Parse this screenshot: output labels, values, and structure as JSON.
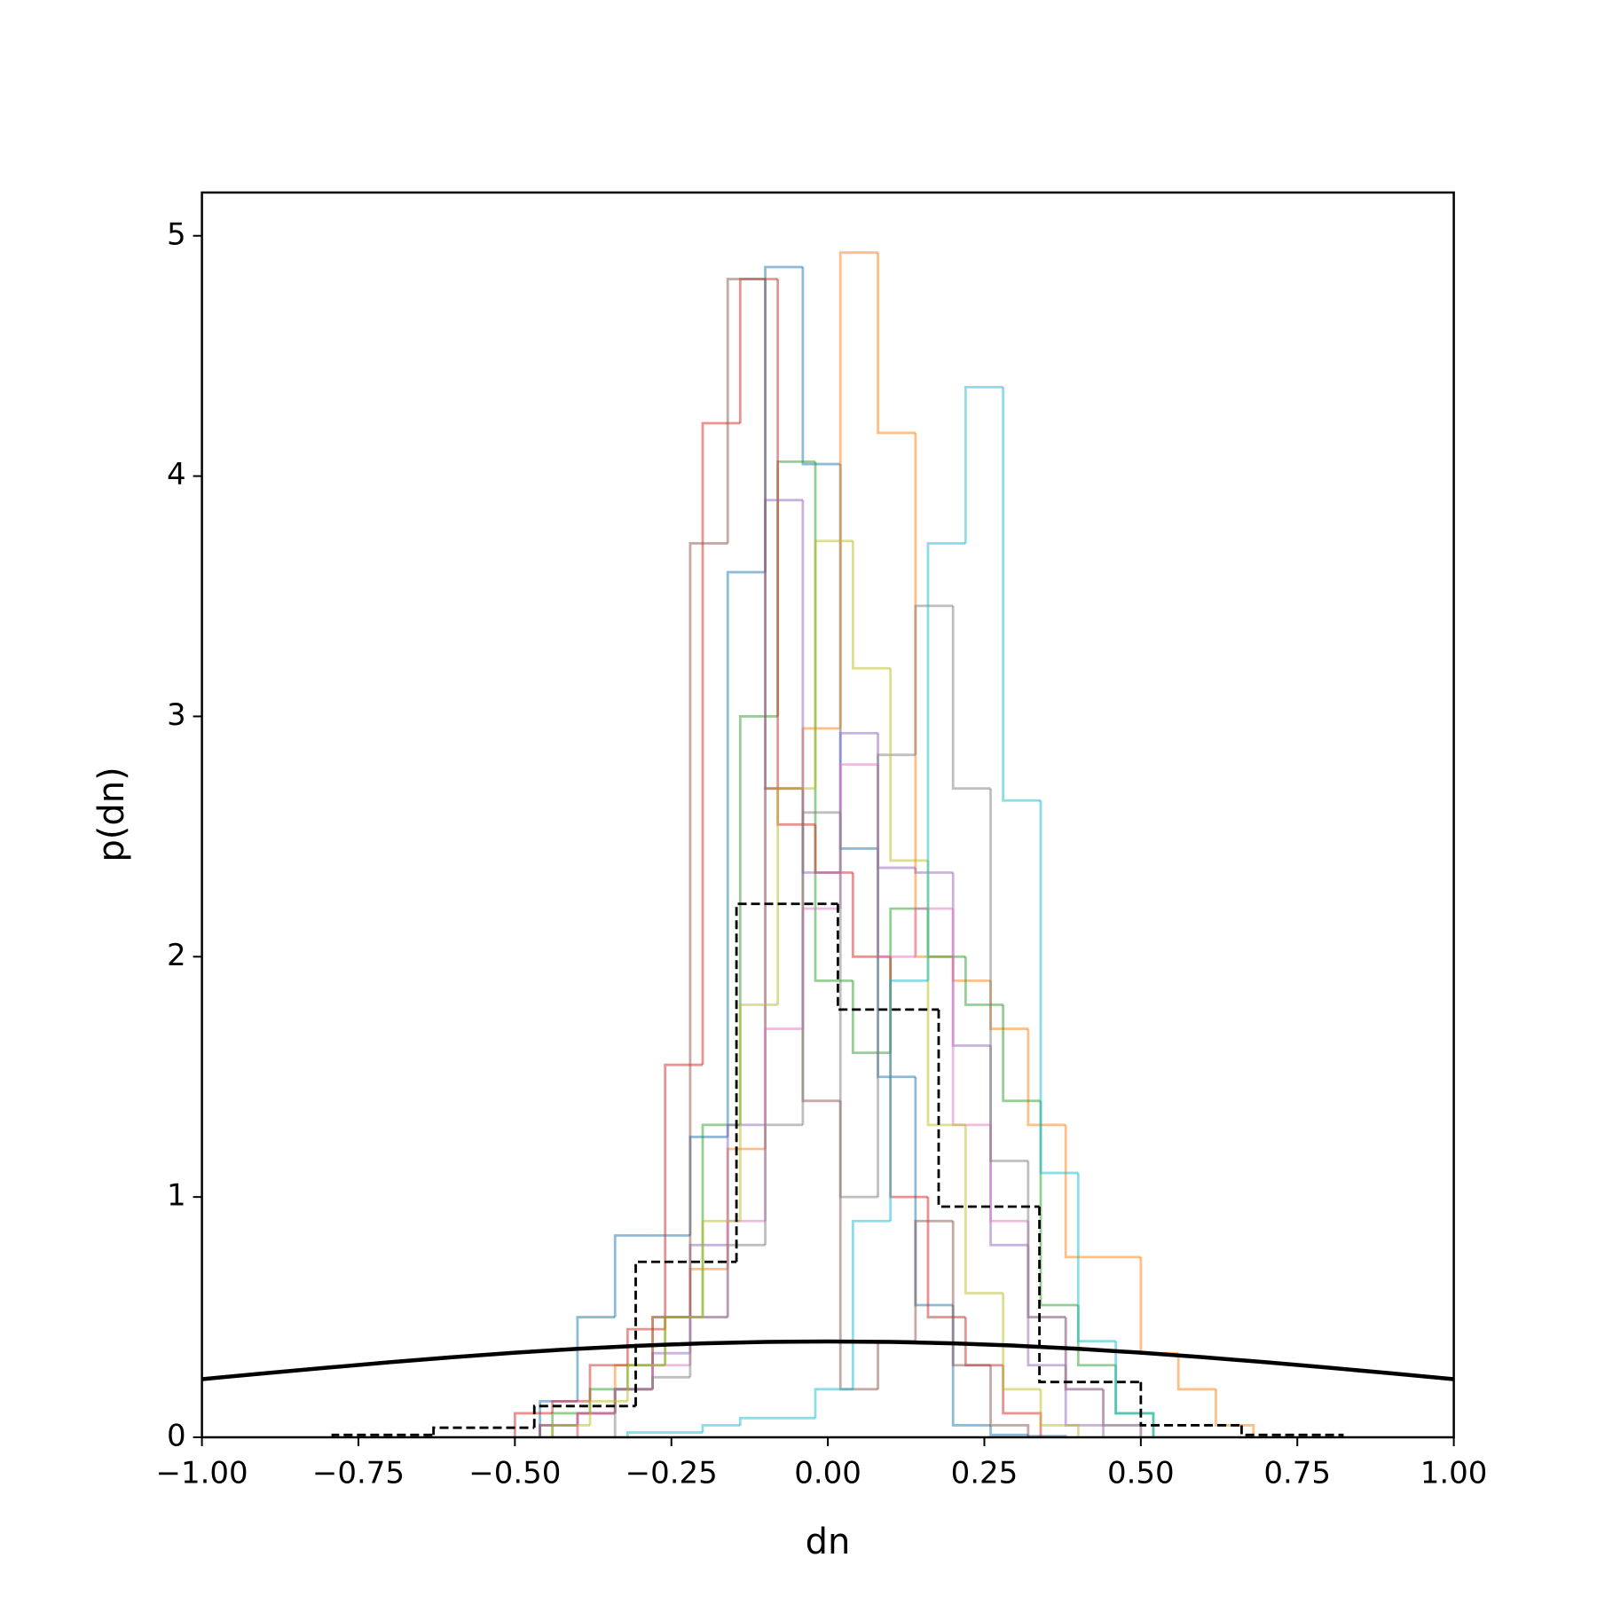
{
  "chart_data": {
    "type": "histogram",
    "xlabel": "dn",
    "ylabel": "p(dn)",
    "xlim": [
      -1,
      1
    ],
    "ylim": [
      0,
      5.18
    ],
    "xticks": [
      {
        "value": -1,
        "label": "−1.00"
      },
      {
        "value": -0.75,
        "label": "−0.75"
      },
      {
        "value": -0.5,
        "label": "−0.50"
      },
      {
        "value": -0.25,
        "label": "−0.25"
      },
      {
        "value": 0,
        "label": "0.00"
      },
      {
        "value": 0.25,
        "label": "0.25"
      },
      {
        "value": 0.5,
        "label": "0.50"
      },
      {
        "value": 0.75,
        "label": "0.75"
      },
      {
        "value": 1,
        "label": "1.00"
      }
    ],
    "yticks": [
      0,
      1,
      2,
      3,
      4,
      5
    ],
    "series": [
      {
        "color": "#1f77b4",
        "bins": [
          -0.46,
          -0.4,
          -0.34,
          -0.28,
          -0.22,
          -0.16,
          -0.1,
          -0.04,
          0.02,
          0.08,
          0.14,
          0.2,
          0.26,
          0.32,
          0.38
        ],
        "values": [
          0.15,
          0.5,
          0.84,
          0.84,
          1.25,
          3.6,
          4.87,
          4.05,
          2.45,
          1.5,
          0.55,
          0.05,
          0.01,
          0.005
        ]
      },
      {
        "color": "#ff7f0e",
        "bins": [
          -0.4,
          -0.34,
          -0.28,
          -0.22,
          -0.16,
          -0.1,
          -0.04,
          0.02,
          0.08,
          0.14,
          0.2,
          0.26,
          0.32,
          0.38,
          0.44,
          0.5,
          0.56,
          0.62,
          0.68
        ],
        "values": [
          0.1,
          0.3,
          0.5,
          0.7,
          1.2,
          2.7,
          2.95,
          4.93,
          4.18,
          2.0,
          1.9,
          1.7,
          1.3,
          0.75,
          0.75,
          0.35,
          0.2,
          0.05
        ]
      },
      {
        "color": "#2ca02c",
        "bins": [
          -0.44,
          -0.38,
          -0.32,
          -0.26,
          -0.2,
          -0.14,
          -0.08,
          -0.02,
          0.04,
          0.1,
          0.16,
          0.22,
          0.28,
          0.34,
          0.4,
          0.46,
          0.52
        ],
        "values": [
          0.1,
          0.2,
          0.3,
          0.5,
          1.3,
          3.0,
          4.06,
          1.9,
          1.6,
          2.2,
          2.0,
          1.8,
          1.4,
          0.55,
          0.3,
          0.1
        ]
      },
      {
        "color": "#d62728",
        "bins": [
          -0.5,
          -0.44,
          -0.38,
          -0.32,
          -0.26,
          -0.2,
          -0.14,
          -0.08,
          -0.02,
          0.04,
          0.1,
          0.16,
          0.22,
          0.28,
          0.34
        ],
        "values": [
          0.1,
          0.15,
          0.3,
          0.45,
          1.55,
          4.22,
          4.82,
          2.55,
          2.35,
          2.0,
          1.0,
          0.5,
          0.3,
          0.1
        ]
      },
      {
        "color": "#9467bd",
        "bins": [
          -0.46,
          -0.4,
          -0.34,
          -0.28,
          -0.22,
          -0.16,
          -0.1,
          -0.04,
          0.02,
          0.08,
          0.14,
          0.2,
          0.26,
          0.32,
          0.38,
          0.44
        ],
        "values": [
          0.05,
          0.1,
          0.2,
          0.35,
          0.8,
          1.3,
          3.9,
          2.35,
          2.93,
          2.37,
          2.35,
          1.63,
          0.8,
          0.3,
          0.05
        ]
      },
      {
        "color": "#8c564b",
        "bins": [
          -0.46,
          -0.4,
          -0.34,
          -0.28,
          -0.22,
          -0.16,
          -0.1,
          -0.04,
          0.02,
          0.08,
          0.14,
          0.2,
          0.26,
          0.32
        ],
        "values": [
          0.05,
          0.1,
          0.2,
          0.5,
          3.72,
          4.82,
          2.7,
          1.4,
          0.2,
          0.4,
          0.9,
          0.3,
          0.05
        ]
      },
      {
        "color": "#e377c2",
        "bins": [
          -0.4,
          -0.34,
          -0.28,
          -0.22,
          -0.16,
          -0.1,
          -0.04,
          0.02,
          0.08,
          0.14,
          0.2,
          0.26,
          0.32,
          0.38,
          0.44,
          0.5
        ],
        "values": [
          0.1,
          0.2,
          0.3,
          0.5,
          0.9,
          1.7,
          2.2,
          2.8,
          2.0,
          2.2,
          1.3,
          0.9,
          0.5,
          0.2,
          0.05
        ]
      },
      {
        "color": "#7f7f7f",
        "bins": [
          -0.34,
          -0.28,
          -0.22,
          -0.16,
          -0.1,
          -0.04,
          0.02,
          0.08,
          0.14,
          0.2,
          0.26,
          0.32,
          0.38,
          0.44,
          0.5
        ],
        "values": [
          0.2,
          0.25,
          0.5,
          0.8,
          1.3,
          2.6,
          1.0,
          2.84,
          3.46,
          2.7,
          1.15,
          0.5,
          0.2,
          0.05
        ]
      },
      {
        "color": "#bcbd22",
        "bins": [
          -0.44,
          -0.38,
          -0.32,
          -0.26,
          -0.2,
          -0.14,
          -0.08,
          -0.02,
          0.04,
          0.1,
          0.16,
          0.22,
          0.28,
          0.34,
          0.4
        ],
        "values": [
          0.05,
          0.15,
          0.3,
          0.5,
          0.9,
          1.8,
          2.7,
          3.73,
          3.2,
          2.4,
          1.3,
          0.6,
          0.2,
          0.05
        ]
      },
      {
        "color": "#17becf",
        "bins": [
          -0.32,
          -0.26,
          -0.2,
          -0.14,
          -0.08,
          -0.02,
          0.04,
          0.1,
          0.16,
          0.22,
          0.28,
          0.34,
          0.4,
          0.46,
          0.52
        ],
        "values": [
          0.02,
          0.02,
          0.05,
          0.08,
          0.08,
          0.2,
          0.9,
          1.9,
          3.72,
          4.37,
          2.65,
          1.1,
          0.4,
          0.1
        ]
      },
      {
        "color": "#000000",
        "linestyle": "dashed",
        "bins": [
          -0.791,
          -0.63,
          -0.469,
          -0.307,
          -0.146,
          0.016,
          0.177,
          0.338,
          0.5,
          0.661,
          0.822
        ],
        "values": [
          0.01,
          0.04,
          0.13,
          0.73,
          2.22,
          1.78,
          0.96,
          0.23,
          0.05,
          0.01
        ]
      }
    ],
    "curve": {
      "color": "#000000",
      "x": [
        -1,
        -0.9,
        -0.8,
        -0.7,
        -0.6,
        -0.5,
        -0.4,
        -0.3,
        -0.2,
        -0.1,
        0,
        0.1,
        0.2,
        0.3,
        0.4,
        0.5,
        0.6,
        0.7,
        0.8,
        0.9,
        1
      ],
      "values": [
        0.242,
        0.2661,
        0.2897,
        0.3123,
        0.3332,
        0.3521,
        0.3683,
        0.3814,
        0.391,
        0.397,
        0.3989,
        0.397,
        0.391,
        0.3814,
        0.3683,
        0.3521,
        0.3332,
        0.3123,
        0.2897,
        0.2661,
        0.242
      ]
    }
  }
}
